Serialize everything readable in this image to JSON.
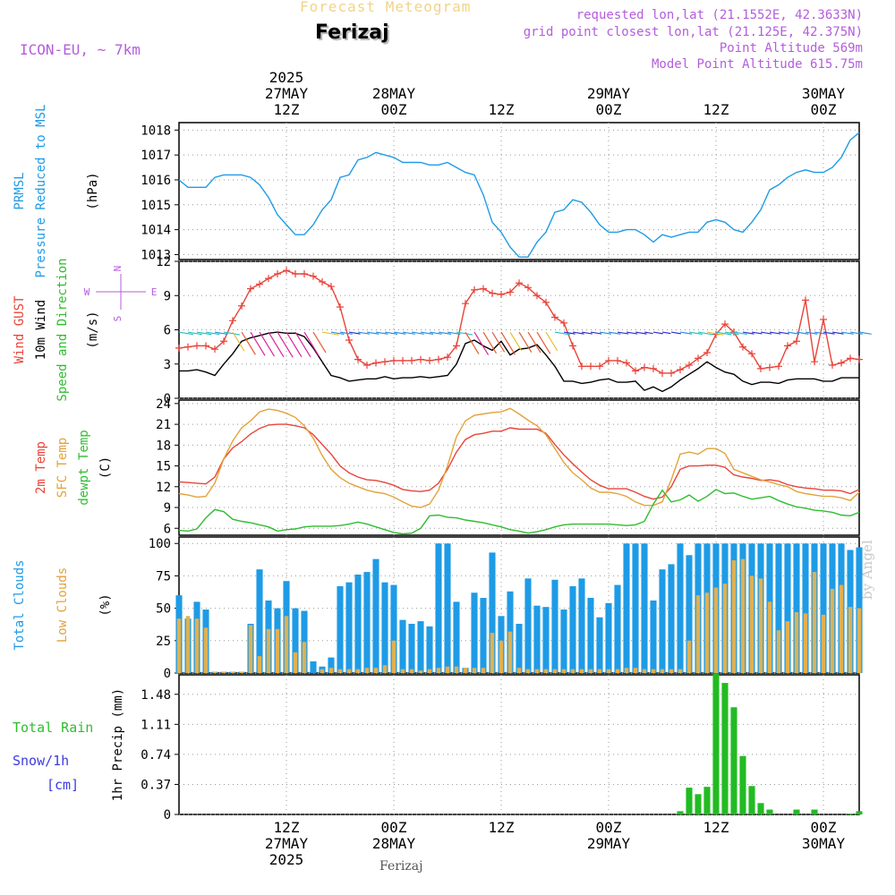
{
  "header": {
    "title": "Forecast Meteogram",
    "location": "Ferizaj",
    "model": "ICON-EU, ~ 7km",
    "requested": "requested lon,lat (21.1552E, 42.3633N)",
    "gridpoint": "grid point closest lon,lat (21.125E, 42.375N)",
    "point_altitude": "Point Altitude 569m",
    "model_altitude": "Model Point Altitude 615.75m",
    "footer_location": "Ferizaj",
    "credit": "by Angel"
  },
  "time_axis": {
    "ticks": [
      {
        "h": 12,
        "top": [
          "2025",
          "27MAY",
          "12Z"
        ],
        "bottom": [
          "12Z",
          "27MAY",
          "2025"
        ]
      },
      {
        "h": 24,
        "top": [
          "28MAY",
          "00Z"
        ],
        "bottom": [
          "00Z",
          "28MAY"
        ]
      },
      {
        "h": 36,
        "top": [
          "12Z"
        ],
        "bottom": [
          "12Z"
        ]
      },
      {
        "h": 48,
        "top": [
          "29MAY",
          "00Z"
        ],
        "bottom": [
          "00Z",
          "29MAY"
        ]
      },
      {
        "h": 60,
        "top": [
          "12Z"
        ],
        "bottom": [
          "12Z"
        ]
      },
      {
        "h": 72,
        "top": [
          "30MAY",
          "00Z"
        ],
        "bottom": [
          "00Z",
          "30MAY"
        ]
      }
    ],
    "start_hour": 0,
    "end_hour": 76
  },
  "chart_data": [
    {
      "type": "line",
      "ylabels": [
        {
          "text": "PRMSL",
          "color": "#1e9be6"
        },
        {
          "text": "Pressure Reduced to MSL",
          "color": "#1e9be6"
        },
        {
          "text": "(hPa)",
          "color": "#000000"
        }
      ],
      "ylim": [
        1012.8,
        1018.3
      ],
      "yticks": [
        1013,
        1014,
        1015,
        1016,
        1017,
        1018
      ],
      "grid": true,
      "series": [
        {
          "color": "#1e9be6",
          "values": [
            1016.0,
            1015.7,
            1015.7,
            1015.7,
            1016.1,
            1016.2,
            1016.2,
            1016.2,
            1016.1,
            1015.8,
            1015.3,
            1014.6,
            1014.2,
            1013.8,
            1013.8,
            1014.2,
            1014.8,
            1015.2,
            1016.1,
            1016.2,
            1016.8,
            1016.9,
            1017.1,
            1017.0,
            1016.9,
            1016.7,
            1016.7,
            1016.7,
            1016.6,
            1016.6,
            1016.7,
            1016.5,
            1016.3,
            1016.2,
            1015.4,
            1014.3,
            1013.9,
            1013.3,
            1012.9,
            1012.9,
            1013.5,
            1013.9,
            1014.7,
            1014.8,
            1015.2,
            1015.1,
            1014.7,
            1014.2,
            1013.9,
            1013.9,
            1014.0,
            1014.0,
            1013.8,
            1013.5,
            1013.8,
            1013.7,
            1013.8,
            1013.9,
            1013.9,
            1014.3,
            1014.4,
            1014.3,
            1014.0,
            1013.9,
            1014.3,
            1014.8,
            1015.6,
            1015.8,
            1016.1,
            1016.3,
            1016.4,
            1016.3,
            1016.3,
            1016.5,
            1016.9,
            1017.6,
            1017.9
          ]
        }
      ]
    },
    {
      "type": "line",
      "ylabels": [
        {
          "text": "Wind GUST",
          "color": "#e8443a"
        },
        {
          "text": "10m Wind",
          "color": "#000000"
        },
        {
          "text": "Speed and Direction",
          "color": "#2fbd2f"
        },
        {
          "text": "(m/s)",
          "color": "#000000"
        }
      ],
      "compass": {
        "n": "N",
        "s": "S",
        "w": "W",
        "e": "E"
      },
      "ylim": [
        0,
        12
      ],
      "yticks": [
        0,
        3,
        6,
        9,
        12
      ],
      "grid": true,
      "series": [
        {
          "color": "#e8443a",
          "marker": "plus",
          "values": [
            4.4,
            4.5,
            4.6,
            4.6,
            4.3,
            5.0,
            6.8,
            8.1,
            9.6,
            10.0,
            10.5,
            10.9,
            11.2,
            10.9,
            10.9,
            10.7,
            10.2,
            9.8,
            8.0,
            5.1,
            3.4,
            2.9,
            3.1,
            3.2,
            3.3,
            3.3,
            3.3,
            3.4,
            3.3,
            3.4,
            3.6,
            4.6,
            8.3,
            9.5,
            9.6,
            9.2,
            9.1,
            9.3,
            10.1,
            9.7,
            9.0,
            8.4,
            7.1,
            6.6,
            4.6,
            2.8,
            2.8,
            2.8,
            3.3,
            3.3,
            3.1,
            2.4,
            2.7,
            2.6,
            2.2,
            2.2,
            2.5,
            2.9,
            3.5,
            4.0,
            5.6,
            6.5,
            5.8,
            4.5,
            3.9,
            2.6,
            2.7,
            2.8,
            4.6,
            5.0,
            8.6,
            3.2,
            6.9,
            2.9,
            3.1,
            3.5,
            3.4
          ]
        },
        {
          "color": "#000000",
          "values": [
            2.4,
            2.4,
            2.5,
            2.3,
            2.0,
            3.0,
            3.9,
            5.0,
            5.3,
            5.5,
            5.7,
            5.8,
            5.7,
            5.7,
            5.4,
            4.4,
            3.2,
            2.0,
            1.8,
            1.5,
            1.6,
            1.7,
            1.7,
            1.9,
            1.7,
            1.8,
            1.8,
            1.9,
            1.8,
            1.9,
            2.0,
            3.0,
            4.8,
            5.1,
            4.6,
            4.2,
            5.0,
            3.8,
            4.3,
            4.4,
            4.7,
            3.8,
            2.8,
            1.5,
            1.5,
            1.3,
            1.4,
            1.6,
            1.7,
            1.4,
            1.4,
            1.5,
            0.7,
            1.0,
            0.6,
            1.0,
            1.6,
            2.1,
            2.6,
            3.2,
            2.7,
            2.3,
            2.1,
            1.5,
            1.2,
            1.4,
            1.4,
            1.3,
            1.6,
            1.7,
            1.7,
            1.7,
            1.5,
            1.5,
            1.8,
            1.8,
            1.8
          ]
        }
      ]
    },
    {
      "type": "line",
      "ylabels": [
        {
          "text": "2m Temp",
          "color": "#e8443a"
        },
        {
          "text": "SFC Temp",
          "color": "#e3a23a"
        },
        {
          "text": "dewpt Temp",
          "color": "#2fbd2f"
        },
        {
          "text": "(C)",
          "color": "#000000"
        }
      ],
      "ylim": [
        5,
        24.5
      ],
      "yticks": [
        6,
        9,
        12,
        15,
        18,
        21,
        24
      ],
      "grid": true,
      "series": [
        {
          "color": "#e8443a",
          "values": [
            12.7,
            12.6,
            12.5,
            12.4,
            13.4,
            16.0,
            17.6,
            18.5,
            19.6,
            20.4,
            20.9,
            21.0,
            21.0,
            20.8,
            20.5,
            19.5,
            18.1,
            16.7,
            15.0,
            14.0,
            13.4,
            13.0,
            12.9,
            12.6,
            12.2,
            11.6,
            11.4,
            11.3,
            11.5,
            12.5,
            14.5,
            17.0,
            18.8,
            19.5,
            19.7,
            20.0,
            20.0,
            20.5,
            20.3,
            20.3,
            20.3,
            19.7,
            18.1,
            16.6,
            15.3,
            14.1,
            13.0,
            12.2,
            11.7,
            11.7,
            11.7,
            11.2,
            10.6,
            10.2,
            10.5,
            12.0,
            14.5,
            15.0,
            15.0,
            15.1,
            15.1,
            14.8,
            13.7,
            13.4,
            13.2,
            12.9,
            13.0,
            12.8,
            12.3,
            12.0,
            11.8,
            11.7,
            11.5,
            11.5,
            11.4,
            11.0,
            11.6
          ]
        },
        {
          "color": "#e3a23a",
          "values": [
            11.0,
            10.8,
            10.5,
            10.6,
            12.5,
            16.0,
            18.6,
            20.5,
            21.5,
            22.8,
            23.2,
            23.0,
            22.6,
            22.0,
            20.8,
            19.0,
            16.5,
            14.5,
            13.3,
            12.5,
            12.0,
            11.5,
            11.2,
            11.0,
            10.5,
            9.8,
            9.2,
            9.0,
            9.5,
            11.5,
            15.0,
            19.2,
            21.5,
            22.3,
            22.5,
            22.7,
            22.8,
            23.3,
            22.5,
            21.6,
            20.8,
            19.5,
            17.5,
            15.5,
            14.0,
            13.0,
            11.8,
            11.2,
            11.2,
            11.0,
            10.6,
            9.8,
            9.3,
            9.3,
            9.8,
            13.0,
            16.7,
            17.0,
            16.7,
            17.5,
            17.5,
            16.8,
            14.5,
            14.0,
            13.5,
            13.0,
            12.7,
            12.3,
            12.0,
            11.3,
            11.0,
            10.8,
            10.6,
            10.6,
            10.4,
            10.0,
            11.2
          ]
        },
        {
          "color": "#2fbd2f",
          "values": [
            5.7,
            5.6,
            5.9,
            7.5,
            8.7,
            8.4,
            7.3,
            7.0,
            6.8,
            6.5,
            6.2,
            5.6,
            5.8,
            5.9,
            6.2,
            6.3,
            6.3,
            6.3,
            6.4,
            6.6,
            6.9,
            6.6,
            6.2,
            5.8,
            5.4,
            5.2,
            5.3,
            6.0,
            7.8,
            7.9,
            7.6,
            7.5,
            7.2,
            7.0,
            6.8,
            6.5,
            6.2,
            5.8,
            5.6,
            5.3,
            5.5,
            5.8,
            6.2,
            6.5,
            6.6,
            6.6,
            6.6,
            6.6,
            6.6,
            6.5,
            6.4,
            6.5,
            7.0,
            9.5,
            11.5,
            9.8,
            10.1,
            10.8,
            9.9,
            10.6,
            11.6,
            11.0,
            11.1,
            10.6,
            10.2,
            10.4,
            10.6,
            10.0,
            9.5,
            9.1,
            8.9,
            8.6,
            8.5,
            8.3,
            7.9,
            7.8,
            8.3
          ]
        }
      ]
    },
    {
      "type": "bar",
      "ylabels": [
        {
          "text": "Total Clouds",
          "color": "#1e9be6"
        },
        {
          "text": "Low Clouds",
          "color": "#e3a23a"
        },
        {
          "text": "(%)",
          "color": "#000000"
        }
      ],
      "ylim": [
        0,
        105
      ],
      "yticks": [
        0,
        25,
        50,
        75,
        100
      ],
      "grid": true,
      "series": [
        {
          "color": "#1e9be6",
          "values": [
            60,
            42,
            55,
            49,
            1,
            1,
            1,
            1,
            38,
            80,
            56,
            50,
            71,
            50,
            48,
            9,
            5,
            12,
            67,
            70,
            76,
            78,
            88,
            70,
            68,
            41,
            38,
            40,
            36,
            100,
            100,
            55,
            4,
            62,
            58,
            93,
            44,
            63,
            38,
            73,
            52,
            51,
            72,
            49,
            67,
            73,
            58,
            43,
            54,
            68,
            100,
            100,
            100,
            56,
            80,
            84,
            100,
            91,
            100,
            100,
            100,
            100,
            100,
            100,
            100,
            100,
            100,
            100,
            100,
            100,
            100,
            100,
            100,
            100,
            100,
            95,
            97
          ]
        },
        {
          "color": "#e0b050",
          "values": [
            42,
            44,
            42,
            35,
            1,
            1,
            1,
            1,
            37,
            13,
            34,
            34,
            44,
            16,
            24,
            0,
            3,
            4,
            3,
            3,
            3,
            4,
            4,
            6,
            25,
            3,
            3,
            2,
            3,
            4,
            5,
            5,
            4,
            4,
            4,
            31,
            25,
            32,
            4,
            3,
            3,
            3,
            3,
            3,
            3,
            3,
            3,
            3,
            3,
            3,
            4,
            4,
            3,
            3,
            3,
            3,
            3,
            25,
            60,
            62,
            66,
            69,
            87,
            88,
            75,
            73,
            55,
            33,
            40,
            47,
            46,
            78,
            45,
            65,
            68,
            51,
            50
          ]
        }
      ]
    },
    {
      "type": "bar",
      "ylabels": [
        {
          "text": "1hr Precip (mm)",
          "color": "#000000"
        }
      ],
      "legend": [
        {
          "text": "Total  Rain",
          "color": "#2fbd2f"
        },
        {
          "text": "Snow/1h",
          "color": "#3b3be0"
        },
        {
          "text": "[cm]",
          "color": "#3b3be0"
        }
      ],
      "ylim": [
        0,
        1.72
      ],
      "yticks": [
        0,
        0.37,
        0.74,
        1.11,
        1.48
      ],
      "grid": true,
      "series": [
        {
          "color": "#22bb22",
          "values": [
            0,
            0,
            0,
            0,
            0,
            0,
            0,
            0,
            0,
            0,
            0,
            0,
            0,
            0,
            0,
            0,
            0,
            0,
            0,
            0,
            0,
            0,
            0,
            0,
            0,
            0,
            0,
            0,
            0,
            0,
            0,
            0,
            0,
            0,
            0,
            0,
            0,
            0,
            0,
            0,
            0,
            0,
            0,
            0,
            0,
            0,
            0,
            0,
            0,
            0,
            0,
            0,
            0,
            0,
            0,
            0,
            0.04,
            0.33,
            0.25,
            0.34,
            1.74,
            1.62,
            1.32,
            0.72,
            0.35,
            0.14,
            0.06,
            0,
            0,
            0.06,
            0,
            0.06,
            0,
            0,
            0,
            0.01,
            0.04
          ]
        }
      ]
    }
  ]
}
